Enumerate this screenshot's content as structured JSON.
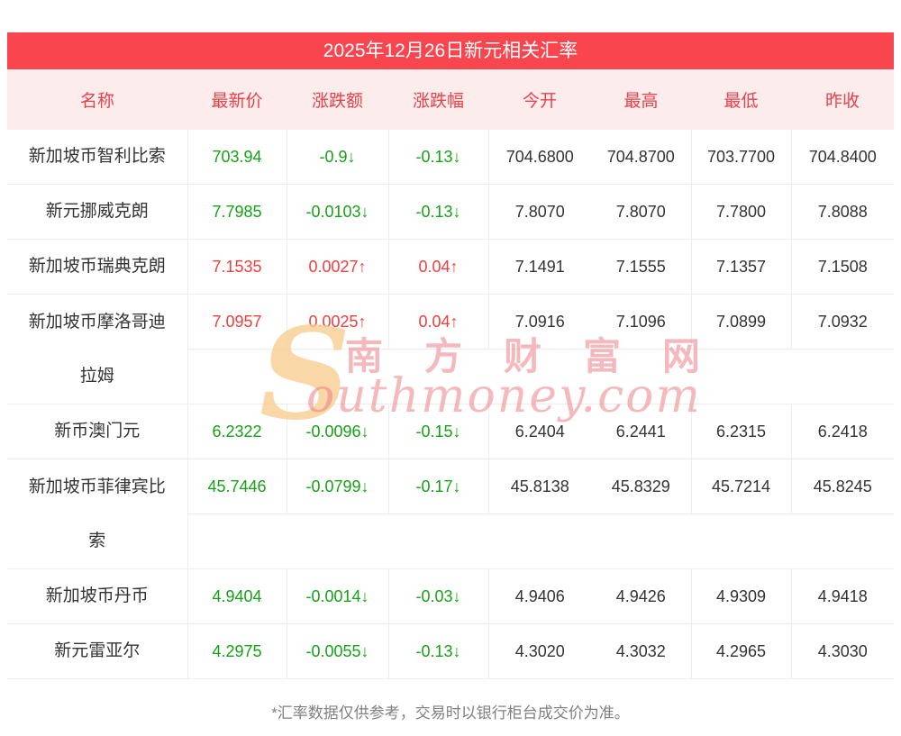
{
  "page": {
    "title": "2025年12月26日新元相关汇率",
    "footnote": "*汇率数据仅供参考，交易时以银行柜台成交价为准。"
  },
  "watermark": {
    "initial": "S",
    "cn": "南方财富网",
    "en": "outhmoney.com"
  },
  "colors": {
    "title_bg": "#f8454e",
    "title_text": "#ffffff",
    "header_bg": "#fdecec",
    "header_text": "#e9414b",
    "up_red": "#f23d3d",
    "down_green": "#16a216",
    "value_text": "#333333",
    "border": "#ededed",
    "footnote_text": "#808080"
  },
  "table": {
    "columns": [
      "名称",
      "最新价",
      "涨跌额",
      "涨跌幅",
      "今开",
      "最高",
      "最低",
      "昨收"
    ],
    "rows": [
      {
        "name": "新加坡币智利比索",
        "latest": "703.94",
        "change": "-0.9↓",
        "pct": "-0.13↓",
        "direction": "down",
        "open": "704.6800",
        "high": "704.8700",
        "low": "703.7700",
        "prev": "704.8400",
        "tall": false
      },
      {
        "name": "新元挪威克朗",
        "latest": "7.7985",
        "change": "-0.0103↓",
        "pct": "-0.13↓",
        "direction": "down",
        "open": "7.8070",
        "high": "7.8070",
        "low": "7.7800",
        "prev": "7.8088",
        "tall": false
      },
      {
        "name": "新加坡币瑞典克朗",
        "latest": "7.1535",
        "change": "0.0027↑",
        "pct": "0.04↑",
        "direction": "up",
        "open": "7.1491",
        "high": "7.1555",
        "low": "7.1357",
        "prev": "7.1508",
        "tall": false
      },
      {
        "name": "新加坡币摩洛哥迪拉姆",
        "latest": "7.0957",
        "change": "0.0025↑",
        "pct": "0.04↑",
        "direction": "up",
        "open": "7.0916",
        "high": "7.1096",
        "low": "7.0899",
        "prev": "7.0932",
        "tall": true
      },
      {
        "name": "新币澳门元",
        "latest": "6.2322",
        "change": "-0.0096↓",
        "pct": "-0.15↓",
        "direction": "down",
        "open": "6.2404",
        "high": "6.2441",
        "low": "6.2315",
        "prev": "6.2418",
        "tall": false
      },
      {
        "name": "新加坡币菲律宾比索",
        "latest": "45.7446",
        "change": "-0.0799↓",
        "pct": "-0.17↓",
        "direction": "down",
        "open": "45.8138",
        "high": "45.8329",
        "low": "45.7214",
        "prev": "45.8245",
        "tall": true
      },
      {
        "name": "新加坡币丹币",
        "latest": "4.9404",
        "change": "-0.0014↓",
        "pct": "-0.03↓",
        "direction": "down",
        "open": "4.9406",
        "high": "4.9426",
        "low": "4.9309",
        "prev": "4.9418",
        "tall": false
      },
      {
        "name": "新元雷亚尔",
        "latest": "4.2975",
        "change": "-0.0055↓",
        "pct": "-0.13↓",
        "direction": "down",
        "open": "4.3020",
        "high": "4.3032",
        "low": "4.2965",
        "prev": "4.3030",
        "tall": false
      }
    ]
  }
}
